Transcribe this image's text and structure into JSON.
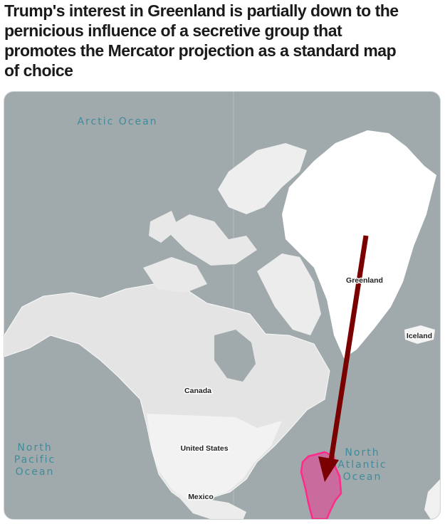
{
  "post": {
    "title_lines": [
      "Trump's interest in Greenland is partially down to the",
      "pernicious influence of a secretive group that",
      "promotes the Mercator projection as a standard map",
      "of choice"
    ]
  },
  "map": {
    "labels": {
      "arctic_ocean": "Arctic Ocean",
      "greenland": "Greenland",
      "iceland": "Iceland",
      "canada": "Canada",
      "united_states": "United States",
      "mexico": "Mexico",
      "north_pacific": [
        "North",
        "Pacific",
        "Ocean"
      ],
      "north_atlantic": [
        "North",
        "Atlantic",
        "Ocean"
      ]
    },
    "colors": {
      "sea": "#a0a9ab",
      "land": "#e6e6e6",
      "greenland": "#ffffff",
      "overlay_fill": "#d0609a",
      "overlay_stroke": "#ff2a8a",
      "arrow": "#7a0000",
      "ocean_label": "#3e8c9c"
    }
  }
}
